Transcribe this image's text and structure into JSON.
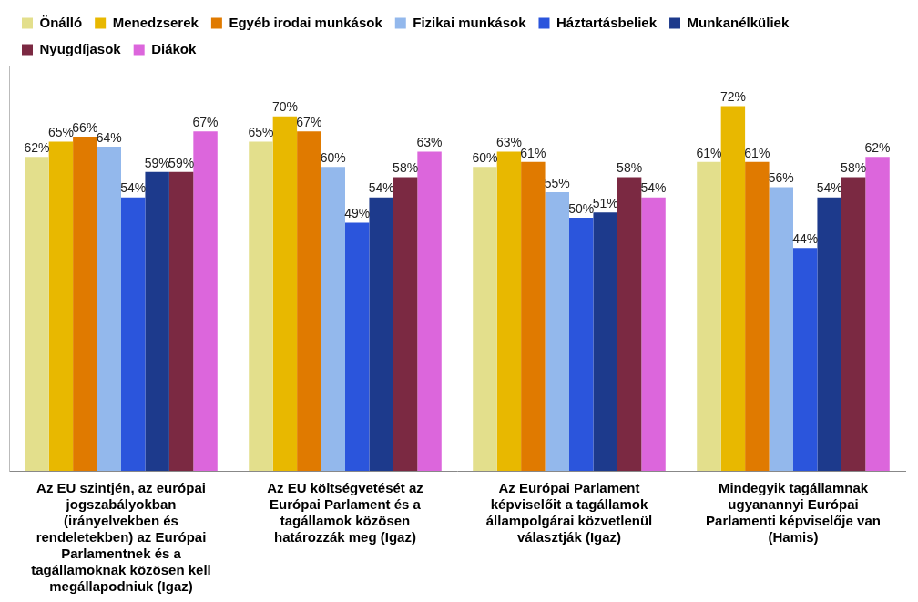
{
  "chart_data": {
    "type": "bar",
    "categories": [
      "Az EU szintjén, az európai jogszabályokban (irányelvekben és rendeletekben) az Európai Parlamentnek és a tagállamoknak közösen kell megállapodniuk (Igaz)",
      "Az EU költségvetését az Európai Parlament és a tagállamok közösen határozzák meg (Igaz)",
      "Az Európai Parlament képviselőit a tagállamok állampolgárai közvetlenül választják (Igaz)",
      "Mindegyik tagállamnak ugyanannyi Európai Parlamenti képviselője van (Hamis)"
    ],
    "series": [
      {
        "name": "Önálló",
        "color": "#e3df8c",
        "values": [
          62,
          65,
          60,
          61
        ],
        "value_labels": [
          "62%",
          "65%",
          "60%",
          "61%"
        ]
      },
      {
        "name": "Menedzserek",
        "color": "#e8b800",
        "values": [
          65,
          70,
          63,
          72
        ],
        "value_labels": [
          "65%",
          "70%",
          "63%",
          "72%"
        ]
      },
      {
        "name": "Egyéb irodai munkások",
        "color": "#e07a00",
        "values": [
          66,
          67,
          61,
          61
        ],
        "value_labels": [
          "66%",
          "67%",
          "61%",
          "61%"
        ]
      },
      {
        "name": "Fizikai munkások",
        "color": "#93b8ec",
        "values": [
          64,
          60,
          55,
          56
        ],
        "value_labels": [
          "64%",
          "60%",
          "55%",
          "56%"
        ]
      },
      {
        "name": "Háztartásbeliek",
        "color": "#2b55dc",
        "values": [
          54,
          49,
          50,
          44
        ],
        "value_labels": [
          "54%",
          "49%",
          "50%",
          "44%"
        ]
      },
      {
        "name": "Munkanélküliek",
        "color": "#1d3a8c",
        "values": [
          59,
          54,
          51,
          54
        ],
        "value_labels": [
          "59%",
          "54%",
          "51%",
          "54%"
        ]
      },
      {
        "name": "Nyugdíjasok",
        "color": "#7b2942",
        "values": [
          59,
          58,
          58,
          58
        ],
        "value_labels": [
          "59%",
          "58%",
          "58%",
          "58%"
        ]
      },
      {
        "name": "Diákok",
        "color": "#dc66dc",
        "values": [
          67,
          63,
          54,
          62
        ],
        "value_labels": [
          "67%",
          "63%",
          "54%",
          "62%"
        ]
      }
    ],
    "ylim": [
      0,
      80
    ],
    "grid": false,
    "legend": "top",
    "data_labels": true,
    "tick_labels": "x"
  }
}
